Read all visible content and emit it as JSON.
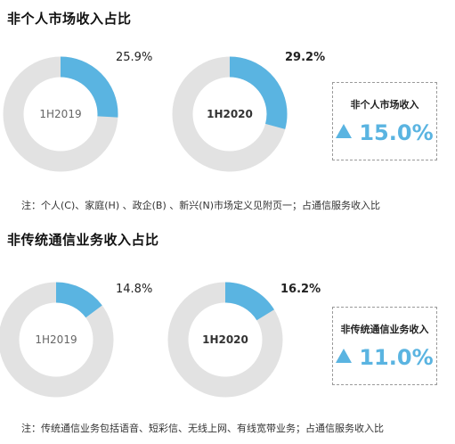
{
  "colors": {
    "accent": "#5ab4e1",
    "track": "#e2e2e2"
  },
  "chart_data": [
    {
      "type": "pie",
      "title": "非个人市场收入占比",
      "categories": [
        "1H2019",
        "1H2020"
      ],
      "labels": [
        "25.9%",
        "29.2%"
      ],
      "values": [
        25.9,
        29.2
      ],
      "growth": {
        "label": "非个人市场收入",
        "value": "15.0%",
        "icon": "up-triangle-icon"
      },
      "note": "注：个人(C)、家庭(H) 、政企(B) 、新兴(N)市场定义见附页一；占通信服务收入比"
    },
    {
      "type": "pie",
      "title": "非传统通信业务收入占比",
      "categories": [
        "1H2019",
        "1H2020"
      ],
      "labels": [
        "14.8%",
        "16.2%"
      ],
      "values": [
        14.8,
        16.2
      ],
      "growth": {
        "label": "非传统通信业务收入",
        "value": "11.0%",
        "icon": "up-triangle-icon"
      },
      "note": "注：传统通信业务包括语音、短彩信、无线上网、有线宽带业务；占通信服务收入比"
    }
  ]
}
